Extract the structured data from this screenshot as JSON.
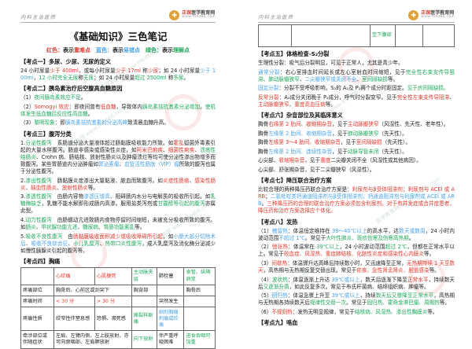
{
  "colors": {
    "k": "#222222",
    "r": "#e0392e",
    "b": "#4aa3e8",
    "g": "#1fa95d",
    "gold": "#e2a23b",
    "brand_red": "#d23b2a"
  },
  "header": {
    "course": "内科主治医师",
    "logo": {
      "icon": "✚",
      "brand_prefix": "正保",
      "brand": "医学教育网",
      "url": "www.med66.com"
    }
  },
  "watermark": {
    "text": "医学教育网 www.med66.com"
  },
  "left_page": {
    "title": "《基础知识》三色笔记",
    "legend": [
      [
        "红色：",
        "r"
      ],
      [
        "表示",
        "k"
      ],
      [
        "重难点",
        "r"
      ],
      [
        "　",
        "k"
      ],
      [
        "蓝色：",
        "b"
      ],
      [
        "表示",
        "k"
      ],
      [
        "易错点",
        "b"
      ],
      [
        "　",
        "k"
      ],
      [
        "绿色：",
        "g"
      ],
      [
        "表示",
        "k"
      ],
      [
        "理解点",
        "g"
      ]
    ],
    "sections": [
      {
        "heading": "【考点一】多尿、少尿、无尿的定义",
        "paras": [
          [
            [
              "24 小时尿量",
              "k"
            ],
            [
              "少于 400ml",
              "r"
            ],
            [
              "，或每小时尿量",
              "k"
            ],
            [
              "少于 17ml ",
              "r"
            ],
            [
              "称",
              "k"
            ],
            [
              "少尿",
              "r"
            ],
            [
              "；如 24 小时尿量",
              "k"
            ],
            [
              "少于 100ml",
              "b"
            ],
            [
              "，",
              "k"
            ],
            [
              "12 小时完全无尿",
              "g"
            ],
            [
              "称",
              "k"
            ],
            [
              "无尿",
              "g"
            ],
            [
              "；如 24 小时尿量",
              "k"
            ],
            [
              "超过 2500ml ",
              "g"
            ],
            [
              "称",
              "k"
            ],
            [
              "多尿",
              "g"
            ],
            [
              "。",
              "k"
            ]
          ]
        ]
      },
      {
        "heading": "【考点二】胰岛素治疗后空腹高血糖原因",
        "paras": [
          [
            [
              "（1）",
              "k"
            ],
            [
              "夜间胰岛素效应不足",
              "g"
            ],
            [
              "。",
              "k"
            ]
          ],
          [
            [
              "（2）",
              "k"
            ],
            [
              "Somogyi 效应",
              "r"
            ],
            [
              "：即夜间曾有",
              "k"
            ],
            [
              "低血糖",
              "r"
            ],
            [
              "，导致体内",
              "k"
            ],
            [
              "胰岛素拮抗激素分泌增加",
              "g"
            ],
            [
              "，",
              "k"
            ],
            [
              "使机体发生低血糖后反应性高血糖",
              "g"
            ],
            [
              "。",
              "k"
            ]
          ],
          [
            [
              "（3）",
              "k"
            ],
            [
              "黎明现象",
              "g"
            ],
            [
              "：即",
              "k"
            ],
            [
              "胰岛素拮抗激素的分泌高峰",
              "b"
            ],
            [
              "致清晨血糖升高。",
              "k"
            ]
          ]
        ]
      },
      {
        "heading": "【考点三】腹泻分类",
        "paras": [
          [
            [
              "1.",
              "k"
            ],
            [
              "分泌性腹泻",
              "g"
            ],
            [
              "　系肠道分泌大量液体超过肠黏膜吸收能力所致。如",
              "k"
            ],
            [
              "霍乱",
              "r"
            ],
            [
              "弧菌外毒素引起的大量水样腹泻。肠道非感染或感染性炎症，如",
              "k"
            ],
            [
              "阿米巴痢疾",
              "r"
            ],
            [
              "、",
              "k"
            ],
            [
              "细菌性痢疾",
              "r"
            ],
            [
              "、",
              "k"
            ],
            [
              "溃疡性结肠炎",
              "g"
            ],
            [
              "、Crohn 病、肠结核、放射性肠炎以及肿瘤溃烂等均可使分泌性渗出物增多而致腹泻。某些胃肠道内分泌肿瘤如",
              "k"
            ],
            [
              "胃泌素瘤",
              "b"
            ],
            [
              "、",
              "k"
            ],
            [
              "血管活性肠肽（VIP）瘤",
              "b"
            ],
            [
              "所致的腹泻也属于分泌性腹泻。",
              "k"
            ]
          ],
          [
            [
              "2.",
              "k"
            ],
            [
              "渗出性腹泻",
              "g"
            ],
            [
              "　肠黏膜炎症渗出大量黏液、脓血而致腹泻。如",
              "k"
            ],
            [
              "炎症性肠病",
              "r"
            ],
            [
              "、",
              "k"
            ],
            [
              "感染性肠炎",
              "r"
            ],
            [
              "、",
              "k"
            ],
            [
              "缺血性肠炎",
              "r"
            ],
            [
              "、",
              "k"
            ],
            [
              "放射性肠炎",
              "r"
            ],
            [
              "等。",
              "k"
            ]
          ],
          [
            [
              "3.",
              "k"
            ],
            [
              "渗透性腹泻",
              "g"
            ],
            [
              "　由肠内容物",
              "k"
            ],
            [
              "渗透压增高",
              "b"
            ],
            [
              "、阻碍肠内水分与电解质的吸收所引起。如",
              "k"
            ],
            [
              "乳糖酶缺乏",
              "g"
            ],
            [
              "，乳糖不能水解即形成肠内高渗。服用盐类泻剂或",
              "k"
            ],
            [
              "甘露醇等引起的腹泻",
              "g"
            ],
            [
              "亦属此型。",
              "k"
            ]
          ],
          [
            [
              "4.",
              "k"
            ],
            [
              "动力性腹泻",
              "g"
            ],
            [
              "　由肠蠕动亢进致肠内食物停留时间缩短，未被充分吸收所致的腹泻。如",
              "k"
            ],
            [
              "肠炎",
              "g"
            ],
            [
              "、",
              "k"
            ],
            [
              "甲状腺功能亢进",
              "g"
            ],
            [
              "、",
              "k"
            ],
            [
              "糖尿病",
              "g"
            ],
            [
              "、",
              "k"
            ],
            [
              "胃肠功能紊乱",
              "g"
            ],
            [
              "等。",
              "k"
            ]
          ],
          [
            [
              "5.",
              "k"
            ],
            [
              "吸收不良性腹泻",
              "g"
            ],
            [
              "　由",
              "k"
            ],
            [
              "肠黏膜吸收面积减少或吸收障碍所引起",
              "r"
            ],
            [
              "，如",
              "k"
            ],
            [
              "小肠大部分切除术后",
              "b"
            ],
            [
              "、",
              "k"
            ],
            [
              "吸收不良综合征",
              "b"
            ],
            [
              "、",
              "k"
            ],
            [
              "小儿乳糜泻",
              "g"
            ],
            [
              "、",
              "k"
            ],
            [
              "热带口炎性腹泻",
              "g"
            ],
            [
              "，成人乳糜泻及消化酶分泌减少如慢性胰腺炎引起的腹泻等。",
              "k"
            ]
          ]
        ]
      },
      {
        "heading": "【考点四】胸痛",
        "table": {
          "widths": [
            17,
            21,
            19,
            13,
            14,
            16
          ],
          "rows": [
            [
              [
                "",
                "k"
              ],
              [
                "心绞痛",
                "r"
              ],
              [
                "心肌梗死",
                "r"
              ],
              [
                "主动脉夹层",
                "g"
              ],
              [
                "肺栓塞",
                "k"
              ],
              [
                "食管、纵隔病变",
                "g"
              ]
            ],
            [
              [
                "疼痛部位",
                "k"
              ],
              [
                "胸骨后、心前区或剑突下",
                "k",
                2
              ],
              [
                "胸背部",
                "k"
              ],
              [
                "",
                "k"
              ],
              [
                "胸骨后",
                "k"
              ]
            ],
            [
              [
                "疼痛时间",
                "k"
              ],
              [
                "< 30 分",
                "r"
              ],
              [
                "> 30 分",
                "r"
              ],
              [
                "",
                "k"
              ],
              [
                "突然发生",
                "k"
              ],
              [
                "",
                "k"
              ]
            ],
            [
              [
                "疼痛性质",
                "k"
              ],
              [
                "绞窄性伴窒息感",
                "k"
              ],
              [
                "恐惧、濒死感",
                "k"
              ],
              [
                "撕裂样剧痛",
                "g"
              ],
              [
                "剧烈胸痛刺痛或绞痛",
                "b"
              ],
              [
                "",
                "k"
              ]
            ],
            [
              [
                "牵涉部位或伴随症状",
                "k"
              ],
              [
                "左肩、左臂内侧、左上肢放射，亦可向颈咽部、左肩胛放射",
                "k",
                2
              ],
              [
                "向下放射",
                "g"
              ],
              [
                "伴严重呼吸困难",
                "k"
              ],
              [
                "进食吞咽可加重",
                "g"
              ]
            ]
          ]
        }
      }
    ]
  },
  "right_page": {
    "table_continuation": {
      "widths": [
        17,
        21,
        19,
        13,
        14,
        16
      ],
      "rows": [
        [
          [
            "",
            "k"
          ],
          [
            "",
            "k",
            2
          ],
          [
            "至下腹部",
            "g"
          ],
          [
            "",
            "k"
          ],
          [
            "",
            "k"
          ]
        ]
      ]
    },
    "sections": [
      {
        "heading": "【考点五】体格检查-S₂分裂",
        "paras": [
          [
            [
              "生理性分裂：吸气后分裂明显，可见于正常人，尤其是青少年。",
              "k"
            ]
          ],
          [
            [
              "通常分裂",
              "b"
            ],
            [
              "：右心室排血时间延长或左心室射血时间缩短，见于",
              "k"
            ],
            [
              "完全性右束支传导阻滞",
              "g"
            ],
            [
              "、",
              "k"
            ],
            [
              "肺动脉瓣狭窄",
              "g"
            ],
            [
              "、",
              "k"
            ],
            [
              "二尖瓣狭窄或关闭不全",
              "b"
            ],
            [
              "、",
              "k"
            ],
            [
              "室间隔缺损",
              "g"
            ],
            [
              "等。",
              "k"
            ]
          ],
          [
            [
              "固定分裂",
              "b"
            ],
            [
              "：分裂不受呼吸影响，S₂的 A₂及 P₂两个成分时距固定。",
              "k"
            ],
            [
              "见于房间隔缺损。",
              "g"
            ]
          ],
          [
            [
              "反常分裂",
              "r"
            ],
            [
              "：A₂成分关闭晚于 P₂成分，呼气时分裂变窄。见于",
              "k"
            ],
            [
              "完全性左束支传导阻滞",
              "r"
            ],
            [
              "、",
              "k"
            ],
            [
              "主动脉瓣狭窄",
              "r"
            ],
            [
              "、",
              "k"
            ],
            [
              "重度高血压病",
              "r"
            ],
            [
              "等。",
              "k"
            ]
          ]
        ]
      },
      {
        "heading": "【考点六】杂音部位及其临床意义",
        "paras": [
          [
            [
              "胸骨",
              "k"
            ],
            [
              "右缘第 2 肋间、收缩期杂音",
              "r"
            ],
            [
              "，见于",
              "k"
            ],
            [
              "主动脉瓣狭窄",
              "r"
            ],
            [
              "（风湿性、先天性、老年性）。",
              "k"
            ]
          ],
          [
            [
              "胸骨",
              "k"
            ],
            [
              "左缘第 2 肋间、收缩期杂音",
              "b"
            ],
            [
              "，见于",
              "k"
            ],
            [
              "肺动脉瓣狭窄",
              "g"
            ],
            [
              "（先天性）。",
              "k"
            ]
          ],
          [
            [
              "胸骨",
              "k"
            ],
            [
              "左缘第 3～4 肋间、收缩期杂音",
              "r"
            ],
            [
              "，见于",
              "k"
            ],
            [
              "室间隔缺损",
              "r"
            ],
            [
              "（先天性）。",
              "k"
            ]
          ],
          [
            [
              "胸骨",
              "k"
            ],
            [
              "左缘第 2 肋间、连续性杂音",
              "b"
            ],
            [
              "，见于",
              "k"
            ],
            [
              "动脉导管未闭",
              "g"
            ],
            [
              "（先天性）。",
              "k"
            ]
          ],
          [
            [
              "心尖部、",
              "k"
            ],
            [
              "收缩期杂音",
              "r"
            ],
            [
              "，见于",
              "k"
            ],
            [
              "重度",
              "r"
            ],
            [
              "二尖瓣关闭不全（风湿性或其他病因）。",
              "k"
            ]
          ],
          [
            [
              "心尖部、舒张期杂音，见于二尖瓣狭窄（风湿性）。",
              "k"
            ]
          ]
        ]
      },
      {
        "heading": "【考点七】降压联合治疗方案",
        "paras": [
          [
            [
              "比较合理的两种降压药联合治疗方案是：",
              "k"
            ],
            [
              "利尿剂与β受体阻滞剂；利尿剂与 ACEI 或 ARB",
              "r"
            ],
            [
              "；",
              "k"
            ],
            [
              "二氢吡啶类钙通道阻滞剂与β受体阻滞剂；钙通道阻滞剂与利尿剂或 ACEI 或 ARB",
              "b"
            ],
            [
              "。",
              "k"
            ],
            [
              "三种降压药的合理的联合治疗方案必须包含利尿剂。对于有并发症或合并症患者，降压药和治疗方案选择应个体化。",
              "r"
            ]
          ]
        ]
      },
      {
        "heading": "【考点八】发热",
        "paras": [
          [
            [
              "（1）",
              "k"
            ],
            [
              "稽留热",
              "b"
            ],
            [
              "：体温恒定维持在 ",
              "k"
            ],
            [
              "39～40℃以上",
              "b"
            ],
            [
              "的高水平，达",
              "k"
            ],
            [
              "数天或数周",
              "b"
            ],
            [
              "，24 小时内波动范围",
              "k"
            ],
            [
              "不超过 1℃",
              "b"
            ],
            [
              "。常见于",
              "k"
            ],
            [
              "大叶性肺炎、斑疹伤寒及伤寒高热期",
              "g"
            ],
            [
              "。",
              "k"
            ]
          ],
          [
            [
              "（2）",
              "k"
            ],
            [
              "弛张热",
              "r"
            ],
            [
              "：体温常在 ",
              "k"
            ],
            [
              "39℃以上",
              "g"
            ],
            [
              "，24 小时波动范围",
              "k"
            ],
            [
              "超过 2℃",
              "g"
            ],
            [
              "，但都在正常水平以上。常见于",
              "k"
            ],
            [
              "败血症、风湿热、重症肺结核、化脓性炎症和感染性心内膜炎",
              "r"
            ],
            [
              "等。",
              "k"
            ]
          ],
          [
            [
              "（3）",
              "k"
            ],
            [
              "间歇热",
              "r"
            ],
            [
              "：体温骤升达高峰后持续数小时，又迅速降至正常，",
              "k"
            ],
            [
              "无热期持续 1 天至数天",
              "r"
            ],
            [
              "，高热期与无热期反复交替出现。常见于",
              "k"
            ],
            [
              "疟疾、急性肾盂肾炎、胆道感染",
              "r"
            ],
            [
              "等。",
              "k"
            ]
          ],
          [
            [
              "（4）",
              "k"
            ],
            [
              "波状热",
              "g"
            ],
            [
              "：体温逐渐上升达 ",
              "k"
            ],
            [
              "39℃或以上",
              "b"
            ],
            [
              "，数天后逐渐下降至",
              "k"
            ],
            [
              "正常水平",
              "r"
            ],
            [
              "，持续数天后",
              "k"
            ],
            [
              "又逐渐升高",
              "g"
            ],
            [
              "，如此反复多次。常见于布氏杆菌病、结缔组织病、肿瘤等。",
              "k"
            ]
          ],
          [
            [
              "（5）",
              "k"
            ],
            [
              "回归热",
              "b"
            ],
            [
              "：体温急骤上升至 ",
              "k"
            ],
            [
              "39℃或以上",
              "b"
            ],
            [
              "，持续",
              "k"
            ],
            [
              "数天后又骤降至正常水平",
              "g"
            ],
            [
              "，高热期与无热期各持续数天后",
              "k"
            ],
            [
              "规律性交替一次",
              "g"
            ],
            [
              "。常见于",
              "k"
            ],
            [
              "回归热、霍奇金淋巴瘤、周期热",
              "g"
            ],
            [
              "等。",
              "k"
            ]
          ],
          [
            [
              "（6）",
              "k"
            ],
            [
              "不规则热",
              "r"
            ],
            [
              "：发热无明显规律，常见于",
              "k"
            ],
            [
              "结核病、风湿热、渗出性胸膜炎",
              "g"
            ],
            [
              "等。",
              "k"
            ]
          ]
        ]
      },
      {
        "heading": "【考点九】咯血",
        "paras": []
      }
    ]
  }
}
